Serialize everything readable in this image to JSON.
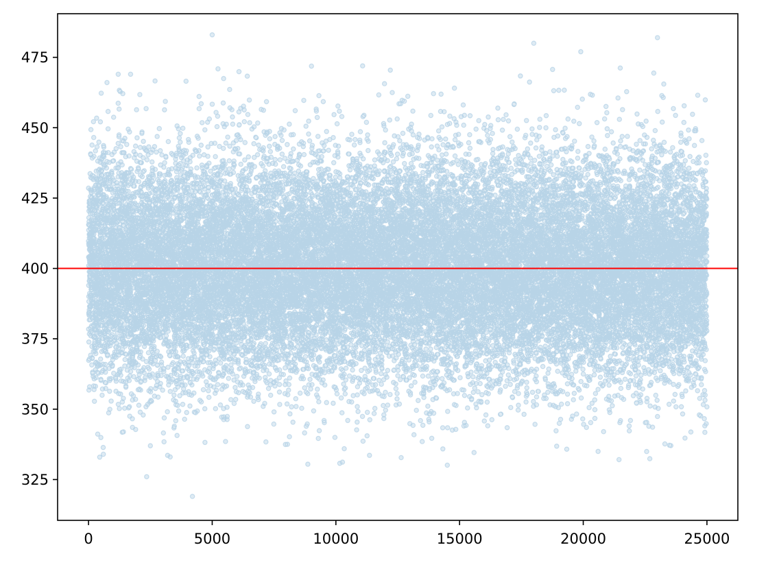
{
  "chart_data": {
    "type": "scatter",
    "title": "",
    "xlabel": "",
    "ylabel": "",
    "xlim": [
      -1250,
      26250
    ],
    "ylim": [
      310.5,
      490.5
    ],
    "xticks": [
      0,
      5000,
      10000,
      15000,
      20000,
      25000
    ],
    "yticks": [
      325,
      350,
      375,
      400,
      425,
      450,
      475
    ],
    "grid": false,
    "legend": "none",
    "series": [
      {
        "marker": "circle",
        "color": "#1f77b4",
        "alpha": 0.15,
        "n_points": 25000,
        "distribution": {
          "kind": "normal",
          "mean": 400,
          "std": 20,
          "x_start": 0,
          "x_end": 24999
        },
        "x": [
          5000,
          23000,
          18000,
          19900,
          4200,
          2350,
          1200,
          1700,
          2500,
          20600,
          600
        ],
        "y": [
          483,
          482,
          480,
          477,
          319,
          326,
          469,
          469,
          337,
          335,
          334
        ]
      }
    ],
    "reference_line": {
      "orientation": "horizontal",
      "y": 400,
      "color": "#ff0000"
    },
    "colors": {
      "points": "#1f77b4",
      "reference_line": "#ff0000",
      "frame": "#000000"
    }
  }
}
